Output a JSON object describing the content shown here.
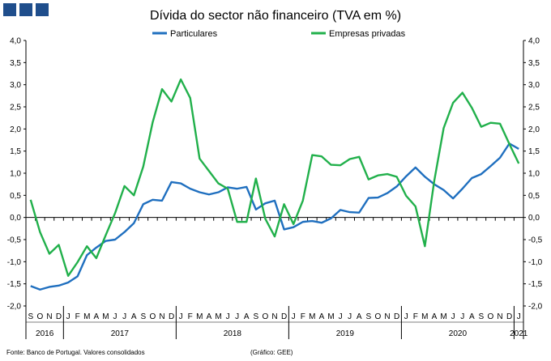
{
  "header": {
    "title": "Dívida do sector não financeiro (TVA em %)"
  },
  "footer": {
    "source": "Fonte: Banco de Portugal. Valores consolidados",
    "credit": "(Gráfico: GEE)"
  },
  "colors": {
    "header_square": "#1f4e8c",
    "particulares": "#1f6fbf",
    "empresas": "#21b04b"
  },
  "chart_data": {
    "type": "line",
    "title": "Dívida do sector não financeiro (TVA em %)",
    "ylim": [
      -2.0,
      4.0
    ],
    "ytick_step": 0.5,
    "yticks_left": [
      "4,0",
      "3,5",
      "3,0",
      "2,5",
      "2,0",
      "1,5",
      "1,0",
      "0,5",
      "0,0",
      "-0,5",
      "-1,0",
      "-1,5",
      "-2,0"
    ],
    "yticks_right": [
      "4,0",
      "3,5",
      "3,0",
      "2,5",
      "2,0",
      "1,5",
      "1,0",
      "0,5",
      "0,0",
      "-0,5",
      "-1,0",
      "-1,5",
      "-2,0"
    ],
    "legend_position": "top",
    "x": [
      "S",
      "O",
      "N",
      "D",
      "J",
      "F",
      "M",
      "A",
      "M",
      "J",
      "J",
      "A",
      "S",
      "O",
      "N",
      "D",
      "J",
      "F",
      "M",
      "A",
      "M",
      "J",
      "J",
      "A",
      "S",
      "O",
      "N",
      "D",
      "J",
      "F",
      "M",
      "A",
      "M",
      "J",
      "J",
      "A",
      "S",
      "O",
      "N",
      "D",
      "J",
      "F",
      "M",
      "A",
      "M",
      "J",
      "J",
      "A",
      "S",
      "O",
      "N",
      "D",
      "J"
    ],
    "year_labels": [
      {
        "label": "2016",
        "start": 0,
        "end": 3
      },
      {
        "label": "2017",
        "start": 4,
        "end": 15
      },
      {
        "label": "2018",
        "start": 16,
        "end": 27
      },
      {
        "label": "2019",
        "start": 28,
        "end": 39
      },
      {
        "label": "2020",
        "start": 40,
        "end": 51
      },
      {
        "label": "2021",
        "start": 52,
        "end": 52
      }
    ],
    "series": [
      {
        "name": "Particulares",
        "color": "#1f6fbf",
        "values": [
          -1.55,
          -1.63,
          -1.57,
          -1.54,
          -1.47,
          -1.33,
          -0.85,
          -0.68,
          -0.53,
          -0.5,
          -0.33,
          -0.13,
          0.3,
          0.4,
          0.38,
          0.8,
          0.77,
          0.65,
          0.57,
          0.52,
          0.57,
          0.68,
          0.65,
          0.69,
          0.18,
          0.32,
          0.38,
          -0.27,
          -0.22,
          -0.1,
          -0.08,
          -0.12,
          -0.02,
          0.17,
          0.12,
          0.11,
          0.44,
          0.45,
          0.55,
          0.7,
          0.93,
          1.13,
          0.92,
          0.75,
          0.62,
          0.43,
          0.65,
          0.89,
          0.98,
          1.16,
          1.35,
          1.67,
          1.55
        ]
      },
      {
        "name": "Empresas privadas",
        "color": "#21b04b",
        "values": [
          0.4,
          -0.33,
          -0.82,
          -0.62,
          -1.32,
          -1.01,
          -0.65,
          -0.92,
          -0.4,
          0.1,
          0.71,
          0.5,
          1.15,
          2.15,
          2.9,
          2.62,
          3.12,
          2.7,
          1.33,
          1.05,
          0.77,
          0.65,
          -0.1,
          -0.1,
          0.88,
          -0.03,
          -0.43,
          0.3,
          -0.15,
          0.38,
          1.41,
          1.38,
          1.19,
          1.18,
          1.32,
          1.37,
          0.86,
          0.95,
          0.98,
          0.92,
          0.49,
          0.25,
          -0.65,
          0.83,
          2.02,
          2.59,
          2.82,
          2.48,
          2.05,
          2.14,
          2.12,
          1.66,
          1.22
        ]
      }
    ]
  }
}
